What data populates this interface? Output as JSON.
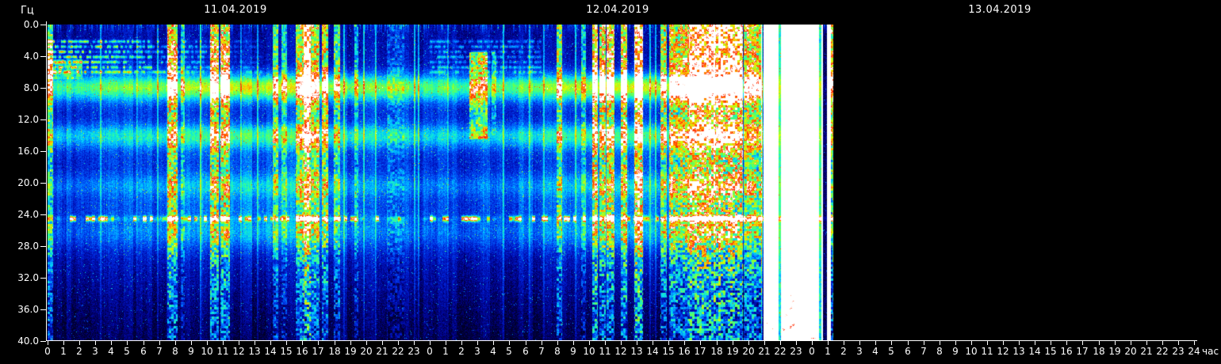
{
  "chart_data": {
    "type": "heatmap",
    "subtype": "spectrogram",
    "title_dates": [
      "11.04.2019",
      "12.04.2019",
      "13.04.2019"
    ],
    "y_axis": {
      "unit": "Гц",
      "range": [
        0,
        40
      ],
      "tick_step": 4,
      "tick_labels": [
        "0.0",
        "4.0",
        "8.0",
        "12.0",
        "16.0",
        "20.0",
        "24.0",
        "28.0",
        "32.0",
        "36.0",
        "40.0"
      ]
    },
    "x_axis": {
      "unit": "час",
      "hours_total": 72,
      "tick_step_hours": 1,
      "tick_labels": [
        "0",
        "1",
        "2",
        "3",
        "4",
        "5",
        "6",
        "7",
        "8",
        "9",
        "10",
        "11",
        "12",
        "13",
        "14",
        "15",
        "16",
        "17",
        "18",
        "19",
        "20",
        "21",
        "22",
        "23",
        "0",
        "1",
        "2",
        "3",
        "4",
        "5",
        "6",
        "7",
        "8",
        "9",
        "10",
        "11",
        "12",
        "13",
        "14",
        "15",
        "16",
        "17",
        "18",
        "19",
        "20",
        "21",
        "22",
        "23",
        "0",
        "1",
        "2",
        "3",
        "4",
        "5",
        "6",
        "7",
        "8",
        "9",
        "10",
        "11",
        "12",
        "13",
        "14",
        "15",
        "16",
        "17",
        "18",
        "19",
        "20",
        "21",
        "22",
        "23",
        "24"
      ]
    },
    "coverage_end_hour": 49.35,
    "no_data_color": "#000000",
    "colormap": "jet_clip_white",
    "colormap_stops": [
      [
        0.0,
        0,
        0,
        40
      ],
      [
        0.1,
        0,
        0,
        130
      ],
      [
        0.22,
        0,
        30,
        210
      ],
      [
        0.34,
        0,
        100,
        255
      ],
      [
        0.46,
        0,
        210,
        255
      ],
      [
        0.56,
        40,
        255,
        170
      ],
      [
        0.66,
        120,
        255,
        60
      ],
      [
        0.74,
        225,
        255,
        0
      ],
      [
        0.81,
        255,
        190,
        0
      ],
      [
        0.88,
        255,
        100,
        0
      ],
      [
        0.94,
        255,
        30,
        0
      ],
      [
        0.985,
        255,
        170,
        140
      ],
      [
        1.0,
        255,
        255,
        255
      ]
    ],
    "background_profile": [
      [
        0,
        0.15
      ],
      [
        1.5,
        0.16
      ],
      [
        3,
        0.17
      ],
      [
        5,
        0.18
      ],
      [
        6.5,
        0.22
      ],
      [
        8,
        0.3
      ],
      [
        9.5,
        0.27
      ],
      [
        11,
        0.24
      ],
      [
        12.5,
        0.24
      ],
      [
        14,
        0.27
      ],
      [
        16,
        0.25
      ],
      [
        18,
        0.24
      ],
      [
        20,
        0.25
      ],
      [
        23,
        0.26
      ],
      [
        26,
        0.24
      ],
      [
        28,
        0.21
      ],
      [
        30,
        0.17
      ],
      [
        33,
        0.13
      ],
      [
        36,
        0.09
      ],
      [
        38,
        0.07
      ],
      [
        40,
        0.05
      ]
    ],
    "event_profile": [
      [
        0,
        1
      ],
      [
        5,
        1
      ],
      [
        8,
        0.8
      ],
      [
        12,
        0.66
      ],
      [
        16,
        0.58
      ],
      [
        20,
        0.52
      ],
      [
        24,
        0.47
      ],
      [
        28,
        0.43
      ],
      [
        32,
        0.4
      ],
      [
        36,
        0.37
      ],
      [
        40,
        0.35
      ]
    ],
    "schumann_bands": [
      {
        "f": 7.9,
        "sigma": 1.2,
        "amp": 0.3
      },
      {
        "f": 14.1,
        "sigma": 1.1,
        "amp": 0.2
      },
      {
        "f": 20.4,
        "sigma": 1.0,
        "amp": 0.1
      },
      {
        "f": 26.3,
        "sigma": 1.4,
        "amp": 0.09
      }
    ],
    "artifact_line": {
      "f": 24.55,
      "sigma": 0.22,
      "amp": 0.8,
      "dashed": true
    },
    "low_freq_lines": {
      "freqs": [
        2.15,
        2.8,
        3.45,
        4.1,
        4.75,
        5.4,
        6.0
      ],
      "sigma": 0.14,
      "spans": [
        {
          "t0": 0,
          "t1": 13.5,
          "amp": 0.28
        },
        {
          "t0": 24,
          "t1": 31,
          "amp": 0.14
        }
      ]
    },
    "diurnal": {
      "peak_hour": 13,
      "sigma_hours": 5,
      "f_center": 22,
      "f_sigma": 5,
      "amp": 0.1
    },
    "events": [
      {
        "t0": 0.0,
        "t1": 0.35,
        "amp": 0.45
      },
      {
        "t0": 0.0,
        "t1": 2.2,
        "amp": 0.22,
        "f0": 4.4,
        "f1": 6.9
      },
      {
        "t0": 7.5,
        "t1": 8.15,
        "amp": 0.6
      },
      {
        "t0": 8.35,
        "t1": 8.6,
        "amp": 0.3
      },
      {
        "t0": 10.2,
        "t1": 10.75,
        "amp": 0.62
      },
      {
        "t0": 10.85,
        "t1": 11.45,
        "amp": 0.62
      },
      {
        "t0": 14.15,
        "t1": 14.5,
        "amp": 0.42
      },
      {
        "t0": 14.7,
        "t1": 15.05,
        "amp": 0.3
      },
      {
        "t0": 15.6,
        "t1": 16.1,
        "amp": 0.5
      },
      {
        "t0": 16.1,
        "t1": 16.55,
        "amp": 0.95
      },
      {
        "t0": 16.55,
        "t1": 17.1,
        "amp": 0.5
      },
      {
        "t0": 17.25,
        "t1": 17.65,
        "amp": 0.55
      },
      {
        "t0": 18.0,
        "t1": 18.35,
        "amp": 0.42
      },
      {
        "t0": 19.25,
        "t1": 19.5,
        "amp": 0.28
      },
      {
        "t0": 21.3,
        "t1": 22.4,
        "amp": 0.15
      },
      {
        "t0": 26.5,
        "t1": 27.65,
        "amp": 0.42,
        "f0": 3.5,
        "f1": 14.5
      },
      {
        "t0": 27.9,
        "t1": 28.2,
        "amp": 0.22,
        "f0": 3.5,
        "f1": 14.0
      },
      {
        "t0": 31.95,
        "t1": 32.3,
        "amp": 0.5
      },
      {
        "t0": 33.5,
        "t1": 33.8,
        "amp": 0.3
      },
      {
        "t0": 34.2,
        "t1": 34.55,
        "amp": 0.7
      },
      {
        "t0": 34.65,
        "t1": 35.05,
        "amp": 0.62
      },
      {
        "t0": 35.1,
        "t1": 35.6,
        "amp": 0.68
      },
      {
        "t0": 36.0,
        "t1": 36.4,
        "amp": 0.62
      },
      {
        "t0": 36.85,
        "t1": 37.4,
        "amp": 0.78
      },
      {
        "t0": 38.5,
        "t1": 38.9,
        "amp": 0.55
      },
      {
        "t0": 39.05,
        "t1": 40.3,
        "amp": 0.62
      },
      {
        "t0": 40.3,
        "t1": 43.65,
        "amp": 0.85
      },
      {
        "t0": 43.7,
        "t1": 44.85,
        "amp": 0.6
      },
      {
        "t0": 44.95,
        "t1": 49.2,
        "amp": 1.18,
        "solid": true
      },
      {
        "t0": 49.2,
        "t1": 49.35,
        "amp": 0.6
      }
    ],
    "gaps": [
      {
        "t": 45.98,
        "w": 0.08,
        "drop": 0.62
      },
      {
        "t": 48.52,
        "w": 0.08,
        "drop": 0.62
      },
      {
        "t": 48.84,
        "w": 0.12,
        "drop": 0.95
      }
    ],
    "thin_vertical_lines": [
      {
        "t": 3.35,
        "a": 0.22
      },
      {
        "t": 5.62,
        "a": 0.2
      },
      {
        "t": 6.9,
        "a": 0.25
      },
      {
        "t": 9.62,
        "a": 0.3
      },
      {
        "t": 12.15,
        "a": 0.22
      },
      {
        "t": 13.2,
        "a": 0.28
      },
      {
        "t": 18.62,
        "a": 0.25
      },
      {
        "t": 19.85,
        "a": 0.3
      },
      {
        "t": 20.6,
        "a": 0.25
      },
      {
        "t": 23.05,
        "a": 0.3
      },
      {
        "t": 23.3,
        "a": 0.28
      },
      {
        "t": 25.15,
        "a": 0.2
      },
      {
        "t": 28.65,
        "a": 0.25
      },
      {
        "t": 30.25,
        "a": 0.2
      },
      {
        "t": 31.15,
        "a": 0.22
      },
      {
        "t": 33.15,
        "a": 0.3
      },
      {
        "t": 37.85,
        "a": 0.3
      },
      {
        "t": 38.2,
        "a": 0.25
      },
      {
        "t": 41.9,
        "a": 0.3
      },
      {
        "t": 44.88,
        "a": 0.35
      }
    ]
  }
}
